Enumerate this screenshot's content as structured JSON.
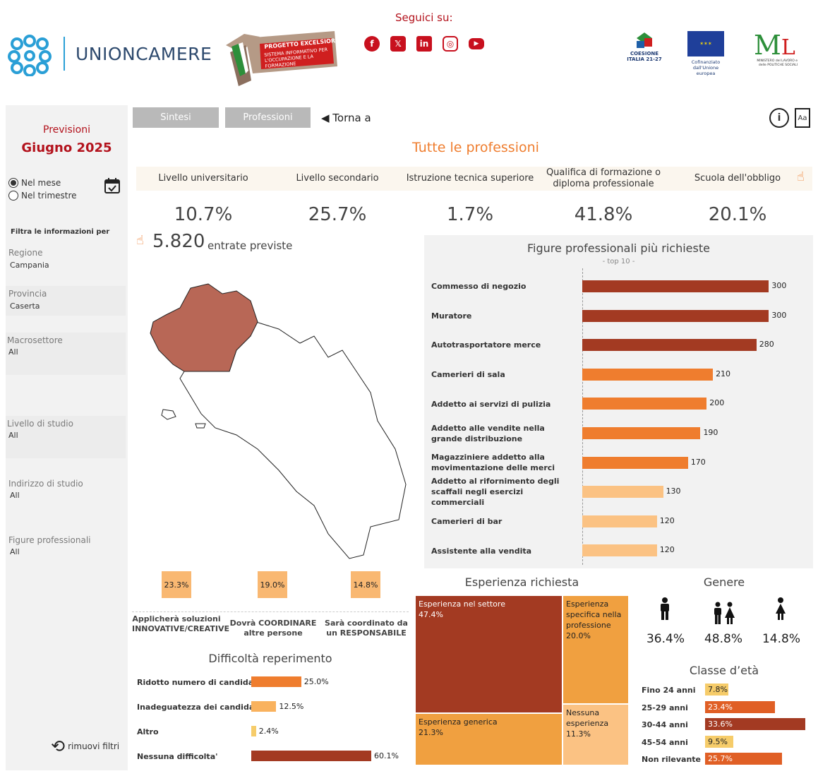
{
  "header": {
    "brand": "UNIONCAMERE",
    "excelsior_title": "PROGETTO EXCELSIOR",
    "excelsior_sub": "SISTEMA INFORMATIVO PER L'OCCUPAZIONE E LA FORMAZIONE",
    "seguici": "Seguici su:",
    "socials": [
      "facebook-icon",
      "x-icon",
      "linkedin-icon",
      "instagram-icon",
      "youtube-icon"
    ],
    "coesione": "COESIONE ITALIA 21-27",
    "eu_caption": "Cofinanziato dall'Unione europea",
    "ministero": "MINISTERO del LAVORO e delle POLITICHE SOCIALI"
  },
  "sidebar": {
    "previsioni": "Previsioni",
    "period": "Giugno 2025",
    "radio_month": "Nel mese",
    "radio_quarter": "Nel trimestre",
    "filter_title": "Filtra le informazioni per",
    "filters": [
      {
        "label": "Regione",
        "value": "Campania"
      },
      {
        "label": "Provincia",
        "value": "Caserta"
      },
      {
        "label": "Macrosettore",
        "value": "All"
      },
      {
        "label": "Livello di studio",
        "value": "All"
      },
      {
        "label": "Indirizzo di studio",
        "value": "All"
      },
      {
        "label": "Figure professionali",
        "value": "All"
      }
    ],
    "reset": "rimuovi filtri"
  },
  "tabs": {
    "sintesi": "Sintesi",
    "professioni": "Professioni",
    "back": "◀ Torna a"
  },
  "main_title": "Tutte le professioni",
  "kpis": [
    {
      "label": "Livello universitario",
      "value": "10.7%"
    },
    {
      "label": "Livello secondario",
      "value": "25.7%"
    },
    {
      "label": "Istruzione tecnica superiore",
      "value": "1.7%"
    },
    {
      "label": "Qualifica di formazione o diploma professionale",
      "value": "41.8%"
    },
    {
      "label": "Scuola dell'obbligo",
      "value": "20.1%"
    }
  ],
  "entrate": {
    "value": "5.820",
    "label": "entrate previste"
  },
  "top_figures": {
    "title": "Figure professionali più richieste",
    "subtitle": "- top 10 -",
    "colors": {
      "dark": "#a33a22",
      "mid": "#ef7d2e",
      "light": "#fbc283"
    }
  },
  "chart_data": {
    "type": "bar",
    "title": "Figure professionali più richieste",
    "subtitle": "- top 10 -",
    "categories": [
      "Commesso di negozio",
      "Muratore",
      "Autotrasportatore merce",
      "Camerieri di sala",
      "Addetto ai servizi di pulizia",
      "Addetto alle vendite nella grande distribuzione",
      "Magazziniere addetto alla movimentazione delle merci",
      "Addetto al rifornimento degli scaffali negli esercizi commerciali",
      "Camerieri di bar",
      "Assistente alla vendita"
    ],
    "values": [
      300,
      300,
      280,
      210,
      200,
      190,
      170,
      130,
      120,
      120
    ],
    "xlim": [
      0,
      320
    ]
  },
  "capacities": [
    {
      "value": "23.3%",
      "label": "Applicherà soluzioni INNOVATIVE/CREATIVE"
    },
    {
      "value": "19.0%",
      "label": "Dovrà COORDINARE altre persone"
    },
    {
      "value": "14.8%",
      "label": "Sarà coordinato da un RESPONSABILE"
    }
  ],
  "difficulty": {
    "title": "Difficoltà reperimento",
    "items": [
      {
        "label": "Ridotto numero di candidati",
        "value": 25.0,
        "text": "25.0%",
        "color": "#ef7d2e"
      },
      {
        "label": "Inadeguatezza dei candidati",
        "value": 12.5,
        "text": "12.5%",
        "color": "#f9b25e"
      },
      {
        "label": "Altro",
        "value": 2.4,
        "text": "2.4%",
        "color": "#f6cc6a"
      },
      {
        "label": "Nessuna difficolta'",
        "value": 60.1,
        "text": "60.1%",
        "color": "#a33a22"
      }
    ]
  },
  "experience": {
    "title": "Esperienza richiesta",
    "items": [
      {
        "label": "Esperienza nel settore",
        "value": "47.4%",
        "color": "#a33a22"
      },
      {
        "label": "Esperienza specifica nella professione",
        "value": "20.0%",
        "color": "#f0a040"
      },
      {
        "label": "Esperienza generica",
        "value": "21.3%",
        "color": "#f0a040"
      },
      {
        "label": "Nessuna esperienza",
        "value": "11.3%",
        "color": "#fbc283"
      }
    ]
  },
  "gender": {
    "title": "Genere",
    "male": "36.4%",
    "both": "48.8%",
    "female": "14.8%"
  },
  "age": {
    "title": "Classe d’età",
    "items": [
      {
        "label": "Fino 24 anni",
        "value": 7.8,
        "text": "7.8%",
        "color": "#f6cc6a"
      },
      {
        "label": "25-29 anni",
        "value": 23.4,
        "text": "23.4%",
        "color": "#e05f25"
      },
      {
        "label": "30-44 anni",
        "value": 33.6,
        "text": "33.6%",
        "color": "#a33a22"
      },
      {
        "label": "45-54 anni",
        "value": 9.5,
        "text": "9.5%",
        "color": "#f6cc6a"
      },
      {
        "label": "Non rilevante",
        "value": 25.7,
        "text": "25.7%",
        "color": "#e05f25"
      }
    ]
  }
}
